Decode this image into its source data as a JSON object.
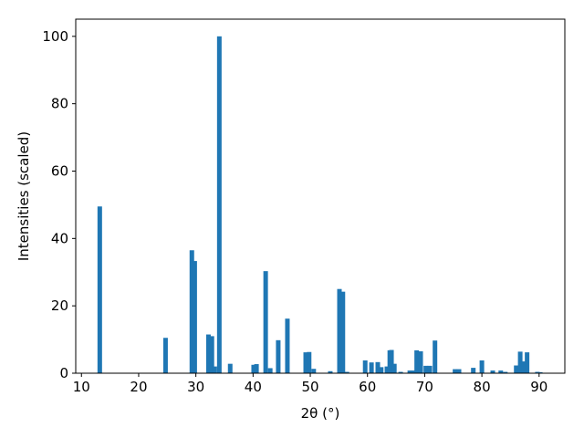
{
  "chart_data": {
    "type": "bar",
    "xlabel": "2θ (°)",
    "ylabel": "Intensities (scaled)",
    "color": "#1f77b4",
    "x": [
      13.2,
      24.7,
      29.3,
      29.8,
      32.2,
      32.8,
      33.3,
      34.1,
      36.0,
      40.1,
      40.6,
      42.2,
      43.0,
      44.4,
      46.0,
      49.2,
      49.8,
      50.6,
      53.5,
      55.1,
      55.7,
      56.4,
      59.6,
      60.7,
      61.8,
      62.4,
      63.4,
      63.9,
      64.2,
      64.7,
      65.8,
      67.4,
      68.0,
      68.6,
      69.3,
      70.2,
      70.9,
      71.8,
      75.3,
      76.0,
      78.5,
      80.0,
      81.9,
      83.3,
      84.1,
      86.0,
      86.7,
      87.3,
      87.9,
      89.7,
      90.2
    ],
    "values": [
      49.5,
      10.5,
      36.5,
      33.3,
      11.5,
      11,
      2,
      100,
      2.8,
      2.5,
      2.7,
      30.3,
      1.5,
      9.8,
      16.2,
      6.2,
      6.3,
      1.3,
      0.6,
      25,
      24.2,
      0.4,
      3.8,
      3.2,
      3.3,
      1.8,
      2,
      6.8,
      6.9,
      2.8,
      0.4,
      0.8,
      0.8,
      6.8,
      6.5,
      2.2,
      2.2,
      9.7,
      1.2,
      1.2,
      1.6,
      3.8,
      0.8,
      0.8,
      0.4,
      2.3,
      6.4,
      3.5,
      6.2,
      0.4,
      0.3
    ],
    "xlim": [
      9.0,
      94.5
    ],
    "ylim": [
      0,
      105.1
    ],
    "xticks": [
      10,
      20,
      30,
      40,
      50,
      60,
      70,
      80,
      90
    ],
    "yticks": [
      0,
      20,
      40,
      60,
      80,
      100
    ]
  }
}
